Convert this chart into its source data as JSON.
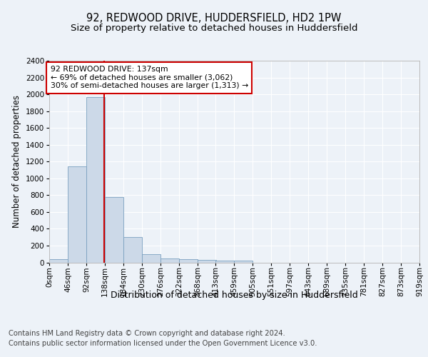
{
  "title": "92, REDWOOD DRIVE, HUDDERSFIELD, HD2 1PW",
  "subtitle": "Size of property relative to detached houses in Huddersfield",
  "xlabel": "Distribution of detached houses by size in Huddersfield",
  "ylabel": "Number of detached properties",
  "bin_edges": [
    0,
    46,
    92,
    138,
    184,
    230,
    276,
    322,
    368,
    413,
    459,
    505,
    551,
    597,
    643,
    689,
    735,
    781,
    827,
    873,
    919
  ],
  "bar_heights": [
    35,
    1140,
    1970,
    775,
    300,
    100,
    45,
    40,
    30,
    20,
    20,
    0,
    0,
    0,
    0,
    0,
    0,
    0,
    0,
    0
  ],
  "bar_color": "#ccd9e8",
  "bar_edge_color": "#7aa0c0",
  "property_line_x": 137,
  "annotation_text": "92 REDWOOD DRIVE: 137sqm\n← 69% of detached houses are smaller (3,062)\n30% of semi-detached houses are larger (1,313) →",
  "annotation_box_color": "#ffffff",
  "annotation_box_edge_color": "#cc0000",
  "red_line_color": "#cc0000",
  "ylim": [
    0,
    2400
  ],
  "yticks": [
    0,
    200,
    400,
    600,
    800,
    1000,
    1200,
    1400,
    1600,
    1800,
    2000,
    2200,
    2400
  ],
  "xtick_labels": [
    "0sqm",
    "46sqm",
    "92sqm",
    "138sqm",
    "184sqm",
    "230sqm",
    "276sqm",
    "322sqm",
    "368sqm",
    "413sqm",
    "459sqm",
    "505sqm",
    "551sqm",
    "597sqm",
    "643sqm",
    "689sqm",
    "735sqm",
    "781sqm",
    "827sqm",
    "873sqm",
    "919sqm"
  ],
  "footer_line1": "Contains HM Land Registry data © Crown copyright and database right 2024.",
  "footer_line2": "Contains public sector information licensed under the Open Government Licence v3.0.",
  "background_color": "#edf2f8",
  "plot_bg_color": "#edf2f8",
  "grid_color": "#ffffff",
  "title_fontsize": 10.5,
  "subtitle_fontsize": 9.5,
  "ylabel_fontsize": 8.5,
  "xlabel_fontsize": 9,
  "annotation_fontsize": 7.8,
  "tick_fontsize": 7.5,
  "footer_fontsize": 7.2
}
